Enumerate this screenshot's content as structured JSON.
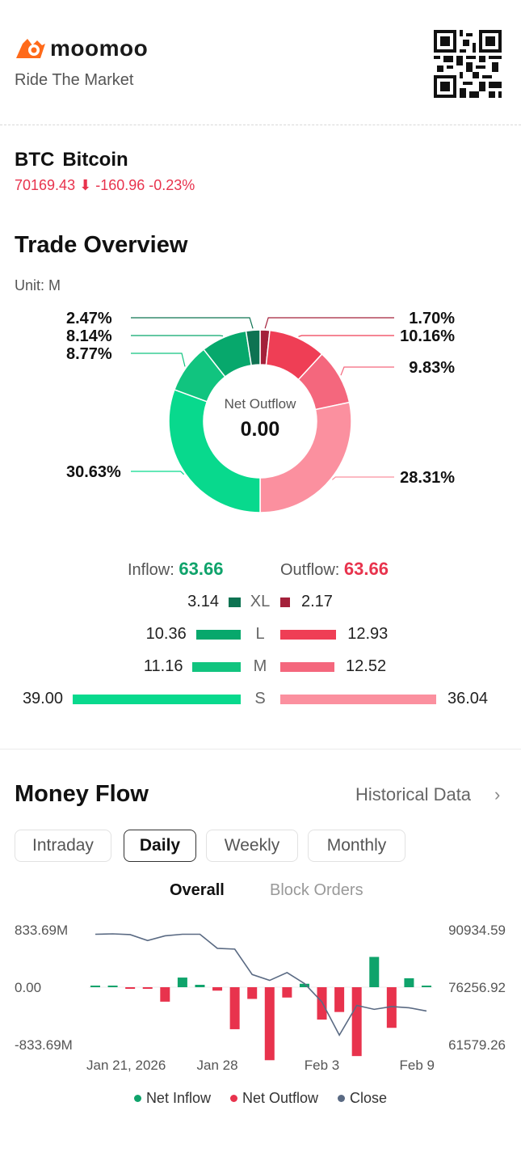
{
  "brand": {
    "name": "moomoo",
    "tagline": "Ride The Market"
  },
  "ticker": {
    "symbol": "BTC",
    "name": "Bitcoin",
    "price": "70169.43",
    "arrow": "⬇",
    "change": "-160.96",
    "change_pct": "-0.23%"
  },
  "trade_overview": {
    "title": "Trade Overview",
    "unit": "Unit: M",
    "center_label": "Net Outflow",
    "center_value": "0.00",
    "slices": [
      {
        "label": "1.70%",
        "value": 1.7,
        "color": "#a3203a"
      },
      {
        "label": "10.16%",
        "value": 10.16,
        "color": "#ef3e55"
      },
      {
        "label": "9.83%",
        "value": 9.83,
        "color": "#f4677d"
      },
      {
        "label": "28.31%",
        "value": 28.31,
        "color": "#fb909f"
      },
      {
        "label": "30.63%",
        "value": 30.63,
        "color": "#08d98d"
      },
      {
        "label": "8.77%",
        "value": 8.77,
        "color": "#11c47f"
      },
      {
        "label": "8.14%",
        "value": 8.14,
        "color": "#07a86c"
      },
      {
        "label": "2.47%",
        "value": 2.47,
        "color": "#0e7352"
      }
    ],
    "inflow_label": "Inflow:",
    "inflow_value": "63.66",
    "outflow_label": "Outflow:",
    "outflow_value": "63.66",
    "rows": [
      {
        "cat": "XL",
        "in": "3.14",
        "out": "2.17",
        "in_v": 3.14,
        "out_v": 2.17,
        "in_color": "#0e7352",
        "out_color": "#a3203a"
      },
      {
        "cat": "L",
        "in": "10.36",
        "out": "12.93",
        "in_v": 10.36,
        "out_v": 12.93,
        "in_color": "#07a86c",
        "out_color": "#ef3e55"
      },
      {
        "cat": "M",
        "in": "11.16",
        "out": "12.52",
        "in_v": 11.16,
        "out_v": 12.52,
        "in_color": "#11c47f",
        "out_color": "#f4677d"
      },
      {
        "cat": "S",
        "in": "39.00",
        "out": "36.04",
        "in_v": 39.0,
        "out_v": 36.04,
        "in_color": "#08d98d",
        "out_color": "#fb909f"
      }
    ]
  },
  "money_flow": {
    "title": "Money Flow",
    "historical": "Historical Data",
    "arrow": "›",
    "tabs": [
      "Intraday",
      "Daily",
      "Weekly",
      "Monthly"
    ],
    "active_tab": "Daily",
    "subtabs": [
      "Overall",
      "Block Orders"
    ],
    "active_subtab": "Overall"
  },
  "chart_data": {
    "type": "bar",
    "left_ticks": [
      "833.69M",
      "0.00",
      "-833.69M"
    ],
    "right_ticks": [
      "90934.59",
      "76256.92",
      "61579.26"
    ],
    "left_range": [
      -833.69,
      833.69
    ],
    "right_range": [
      61579.26,
      90934.59
    ],
    "x_labels": [
      "Jan 21, 2026",
      "Jan 28",
      "Feb 3",
      "Feb 9"
    ],
    "x_label_index": [
      0,
      7,
      13,
      19
    ],
    "net_flow_millions": [
      3,
      3,
      -5,
      -5,
      -210,
      140,
      35,
      -50,
      -610,
      -170,
      -1060,
      -150,
      50,
      -470,
      -360,
      -1000,
      440,
      -590,
      130,
      2
    ],
    "close": [
      89800,
      89900,
      89700,
      88200,
      89400,
      89800,
      89800,
      86200,
      86000,
      79500,
      78000,
      80000,
      77200,
      72500,
      64000,
      71600,
      70600,
      71300,
      71000,
      70169
    ],
    "series": [
      {
        "name": "Net Inflow",
        "color": "#0fa36b"
      },
      {
        "name": "Net Outflow",
        "color": "#e8334d"
      },
      {
        "name": "Close",
        "color": "#5a6a83"
      }
    ]
  }
}
